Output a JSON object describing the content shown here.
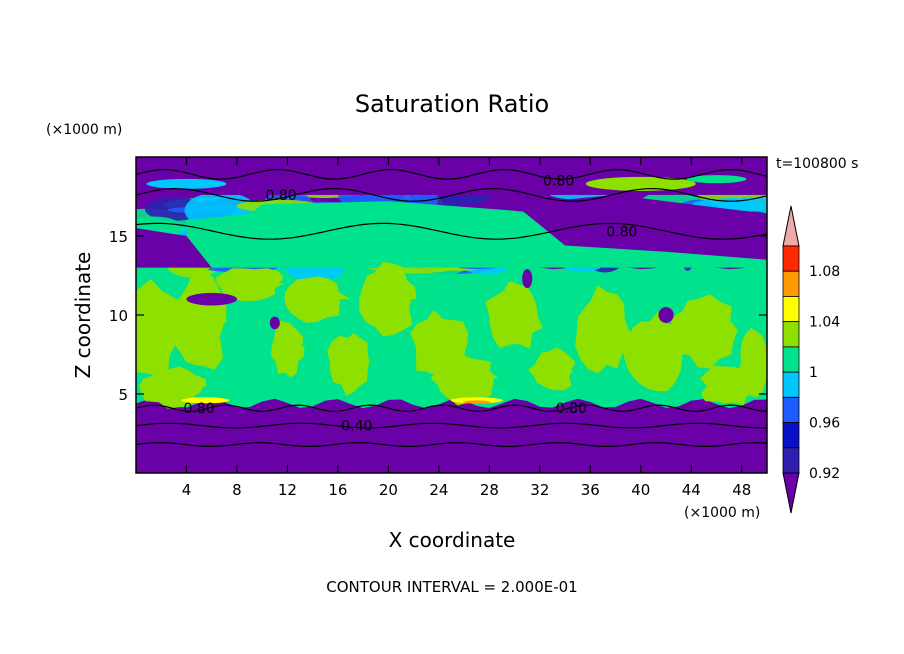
{
  "chart_data": {
    "type": "heatmap",
    "title": "Saturation Ratio",
    "xlabel": "X coordinate",
    "ylabel": "Z coordinate",
    "x_unit": "(×1000 m)",
    "y_unit": "(×1000 m)",
    "time_label": "t=100800 s",
    "footer": "CONTOUR INTERVAL = 2.000E-01",
    "xlim": [
      0,
      50
    ],
    "ylim": [
      0,
      20
    ],
    "x_ticks": [
      4,
      8,
      12,
      16,
      20,
      24,
      28,
      32,
      36,
      40,
      44,
      48
    ],
    "y_ticks": [
      5,
      10,
      15
    ],
    "colorbar": {
      "levels": [
        0.92,
        0.94,
        0.96,
        0.98,
        1.0,
        1.02,
        1.04,
        1.06,
        1.08,
        1.1
      ],
      "labels": [
        "0.92",
        "0.96",
        "1",
        "1.04",
        "1.08"
      ],
      "colors": [
        "#6a00a8",
        "#2e1fb0",
        "#0a10c8",
        "#1f5cff",
        "#00c8ff",
        "#00e38c",
        "#8ee000",
        "#ffff00",
        "#ff9a00",
        "#ff2a00",
        "#f0a8a8"
      ]
    },
    "bands": [
      {
        "z_from": 0.0,
        "z_to": 4.5,
        "value": "<0.92"
      },
      {
        "z_from": 4.5,
        "z_to": 13.0,
        "value": "0.98-1.02"
      },
      {
        "z_from": 13.0,
        "z_to": 17.5,
        "value": "mixed 0.92-1.02"
      },
      {
        "z_from": 17.5,
        "z_to": 20.0,
        "value": "<0.92"
      }
    ],
    "contour_labels": [
      {
        "text": "0.80",
        "x": 5,
        "z": 4.1
      },
      {
        "text": "0.40",
        "x": 17.5,
        "z": 3.0
      },
      {
        "text": "0.80",
        "x": 34.5,
        "z": 4.1
      },
      {
        "text": "0.80",
        "x": 11.5,
        "z": 17.6
      },
      {
        "text": "0.80",
        "x": 38.5,
        "z": 15.3
      },
      {
        "text": "0.80",
        "x": 33.5,
        "z": 18.5
      }
    ]
  }
}
